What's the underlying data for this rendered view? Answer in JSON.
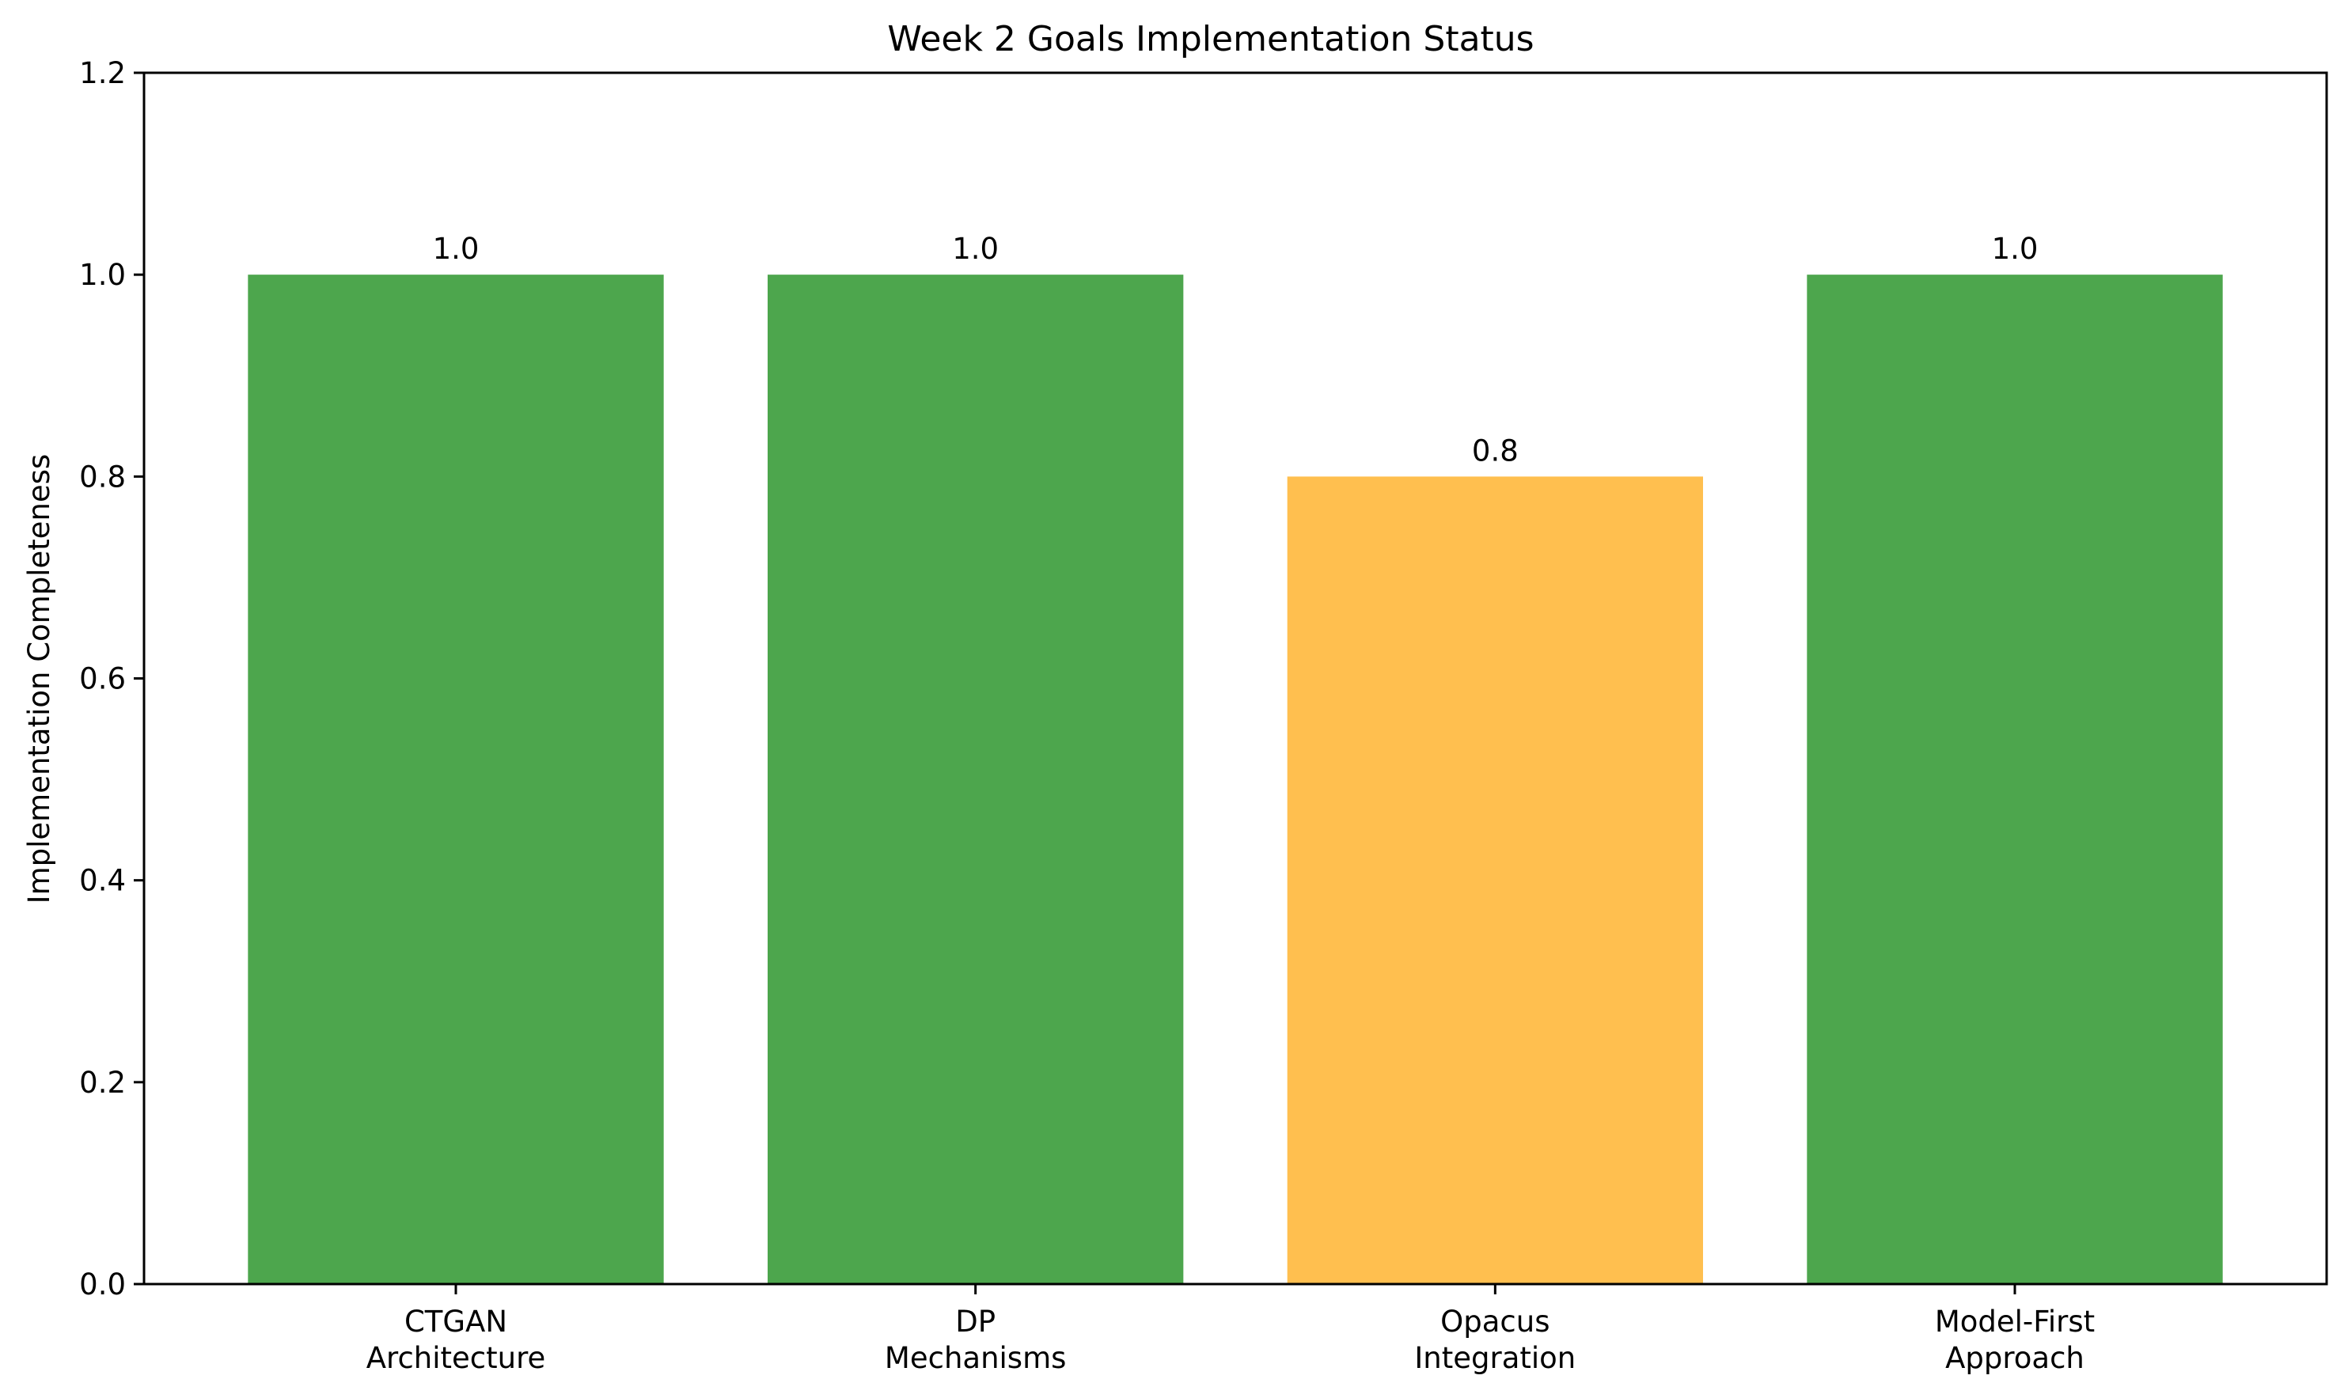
{
  "chart_data": {
    "type": "bar",
    "title": "Week 2 Goals Implementation Status",
    "xlabel": "",
    "ylabel": "Implementation Completeness",
    "categories": [
      [
        "CTGAN",
        "Architecture"
      ],
      [
        "DP",
        "Mechanisms"
      ],
      [
        "Opacus",
        "Integration"
      ],
      [
        "Model-First",
        "Approach"
      ]
    ],
    "values": [
      1.0,
      1.0,
      0.8,
      1.0
    ],
    "value_labels": [
      "1.0",
      "1.0",
      "0.8",
      "1.0"
    ],
    "colors": [
      "#4da64d",
      "#4da64d",
      "#ffbf4f",
      "#4da64d"
    ],
    "ylim": [
      0,
      1.2
    ],
    "yticks": [
      0.0,
      0.2,
      0.4,
      0.6,
      0.8,
      1.0,
      1.2
    ],
    "ytick_labels": [
      "0.0",
      "0.2",
      "0.4",
      "0.6",
      "0.8",
      "1.0",
      "1.2"
    ],
    "grid": false,
    "legend": "none"
  }
}
